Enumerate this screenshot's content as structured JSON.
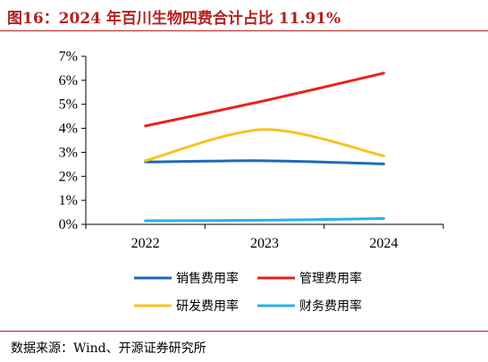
{
  "figure": {
    "title": "图16：2024 年百川生物四费合计占比 11.91%",
    "source": "数据来源：Wind、开源证券研究所"
  },
  "chart_data": {
    "type": "line",
    "title": "",
    "xlabel": "",
    "ylabel": "",
    "x": [
      "2022",
      "2023",
      "2024"
    ],
    "y_ticks": [
      "0%",
      "1%",
      "2%",
      "3%",
      "4%",
      "5%",
      "6%",
      "7%"
    ],
    "ylim": [
      0,
      7
    ],
    "grid": false,
    "legend_position": "bottom",
    "series": [
      {
        "name": "销售费用率",
        "color": "#1f6bb5",
        "values": [
          2.6,
          2.65,
          2.52
        ]
      },
      {
        "name": "管理费用率",
        "color": "#e8221b",
        "values": [
          4.1,
          5.15,
          6.3
        ]
      },
      {
        "name": "研发费用率",
        "color": "#f7c31f",
        "values": [
          2.65,
          3.95,
          2.85
        ]
      },
      {
        "name": "财务费用率",
        "color": "#2ab0e6",
        "values": [
          0.15,
          0.17,
          0.24
        ]
      }
    ]
  }
}
